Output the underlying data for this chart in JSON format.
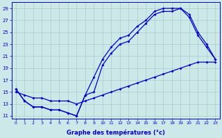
{
  "xlabel": "Graphe des températures (°c)",
  "bg_color": "#cce8e8",
  "grid_color": "#aacccc",
  "line_color": "#0000cc",
  "line1_x": [
    0,
    1,
    2,
    3,
    4,
    5,
    6,
    7,
    8,
    9,
    10,
    11,
    12,
    13,
    14,
    15,
    16,
    17,
    18,
    19,
    20,
    21,
    22,
    23
  ],
  "line1_y": [
    15.5,
    13.5,
    12.5,
    12.5,
    12.0,
    12.0,
    11.5,
    11.0,
    14.5,
    17.5,
    20.5,
    22.5,
    24.0,
    24.5,
    26.0,
    27.0,
    28.5,
    29.0,
    29.0,
    29.0,
    28.0,
    25.0,
    23.0,
    20.5
  ],
  "line2_x": [
    0,
    1,
    2,
    3,
    4,
    5,
    6,
    7,
    8,
    9,
    10,
    11,
    12,
    13,
    14,
    15,
    16,
    17,
    18,
    19,
    20,
    21,
    22,
    23
  ],
  "line2_y": [
    15.5,
    13.5,
    12.5,
    12.5,
    12.0,
    12.0,
    11.5,
    11.0,
    14.5,
    15.0,
    19.5,
    21.5,
    23.0,
    23.5,
    25.0,
    26.5,
    28.0,
    28.5,
    28.5,
    29.0,
    27.5,
    24.5,
    22.5,
    20.5
  ],
  "line3_x": [
    0,
    1,
    2,
    3,
    4,
    5,
    6,
    7,
    8,
    9,
    10,
    11,
    12,
    13,
    14,
    15,
    16,
    17,
    18,
    19,
    20,
    21,
    22,
    23
  ],
  "line3_y": [
    15.0,
    14.5,
    14.0,
    14.0,
    13.5,
    13.5,
    13.5,
    13.0,
    13.5,
    14.0,
    14.5,
    15.0,
    15.5,
    16.0,
    16.5,
    17.0,
    17.5,
    18.0,
    18.5,
    19.0,
    19.5,
    20.0,
    20.0,
    20.0
  ],
  "xticks": [
    0,
    1,
    2,
    3,
    4,
    5,
    6,
    7,
    8,
    9,
    10,
    11,
    12,
    13,
    14,
    15,
    16,
    17,
    18,
    19,
    20,
    21,
    22,
    23
  ],
  "yticks": [
    11,
    13,
    15,
    17,
    19,
    21,
    23,
    25,
    27,
    29
  ],
  "ylim": [
    10.5,
    30.0
  ],
  "xlim": [
    -0.5,
    23.5
  ],
  "figsize": [
    3.2,
    2.0
  ],
  "dpi": 100
}
